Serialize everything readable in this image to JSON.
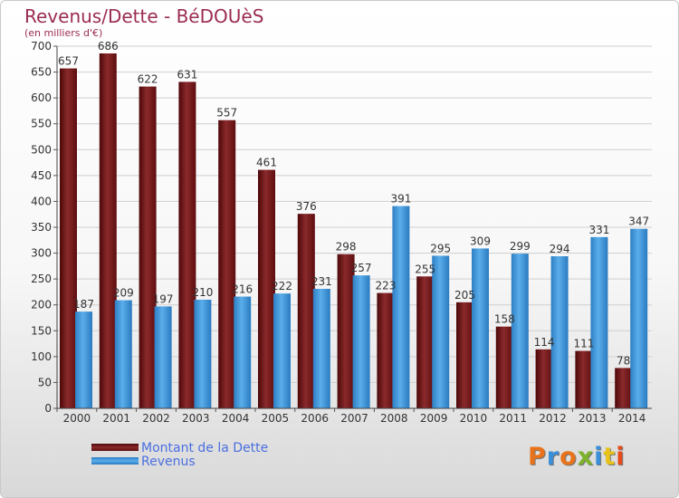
{
  "header": {
    "title": "Revenus/Dette - BéDOUèS",
    "subtitle": "(en milliers d'€)"
  },
  "colors": {
    "dette": "#7a1a1c",
    "revenus": "#3d9be0",
    "title": "#9b2c52",
    "legend_text": "#4a6fe0"
  },
  "chart_data": {
    "type": "bar",
    "title": "Revenus/Dette - BéDOUèS",
    "ylabel": "(en milliers d'€)",
    "ylim": [
      0,
      700
    ],
    "yticks": [
      0,
      50,
      100,
      150,
      200,
      250,
      300,
      350,
      400,
      450,
      500,
      550,
      600,
      650,
      700
    ],
    "grid": true,
    "legend_position": "bottom-left",
    "categories": [
      "2000",
      "2001",
      "2002",
      "2003",
      "2004",
      "2005",
      "2006",
      "2007",
      "2008",
      "2009",
      "2010",
      "2011",
      "2012",
      "2013",
      "2014"
    ],
    "series": [
      {
        "name": "Montant de la Dette",
        "values": [
          657,
          686,
          622,
          631,
          557,
          461,
          376,
          298,
          223,
          255,
          205,
          158,
          114,
          111,
          78
        ]
      },
      {
        "name": "Revenus",
        "values": [
          187,
          209,
          197,
          210,
          216,
          222,
          231,
          257,
          391,
          295,
          309,
          299,
          294,
          331,
          347
        ]
      }
    ]
  },
  "legend": {
    "items": [
      "Montant de la Dette",
      "Revenus"
    ]
  },
  "logo": {
    "letters": [
      "P",
      "r",
      "o",
      "x",
      "i",
      "t",
      "i"
    ],
    "colors": [
      "#e8731a",
      "#3a8fd8",
      "#e8731a",
      "#7cb32a",
      "#3a8fd8",
      "#e8c21a",
      "#e84a1a"
    ]
  }
}
